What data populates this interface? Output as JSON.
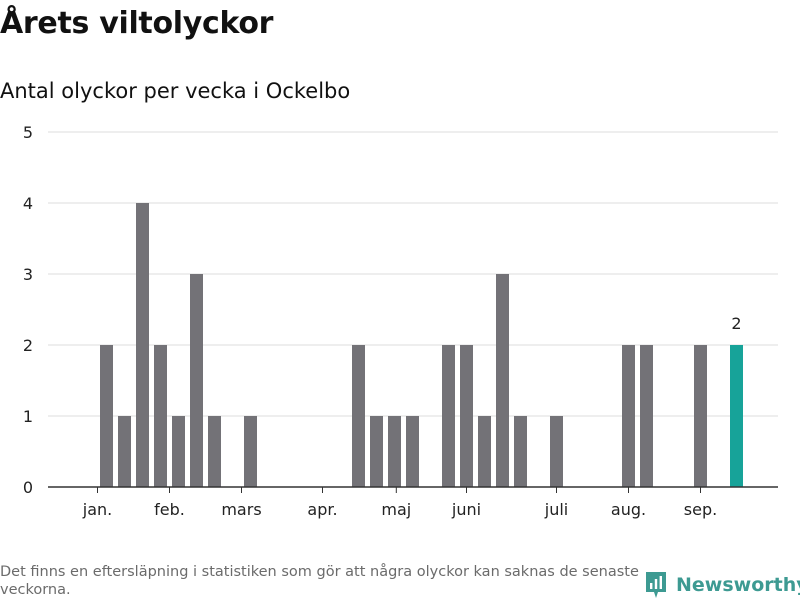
{
  "title": "Årets viltolyckor",
  "subtitle": "Antal olyckor per vecka i Ockelbo",
  "footnote": "Det finns en eftersläpning i statistiken som gör att några olyckor kan saknas de senaste veckorna.",
  "brand": {
    "name": "Newsworthy",
    "icon": "newsworthy-logo-icon",
    "color": "#3d9a92"
  },
  "colors": {
    "bar": "#737277",
    "highlight": "#17a399",
    "grid": "#dddddd",
    "axis": "#333333"
  },
  "chart_data": {
    "type": "bar",
    "xlabel": "",
    "ylabel": "",
    "ylim": [
      0,
      5
    ],
    "yticks": [
      0,
      1,
      2,
      3,
      4,
      5
    ],
    "grid": true,
    "x_start_week": 1,
    "values": [
      0,
      2,
      1,
      4,
      2,
      1,
      3,
      1,
      0,
      1,
      0,
      0,
      0,
      0,
      0,
      2,
      1,
      1,
      1,
      0,
      2,
      2,
      1,
      3,
      1,
      0,
      1,
      0,
      0,
      0,
      2,
      2,
      0,
      0,
      2,
      0,
      2
    ],
    "highlight_index": 36,
    "highlight_label": "2",
    "month_labels": [
      {
        "label": "jan.",
        "week": 1.5
      },
      {
        "label": "feb.",
        "week": 5.5
      },
      {
        "label": "mars",
        "week": 9.5
      },
      {
        "label": "apr.",
        "week": 14
      },
      {
        "label": "maj",
        "week": 18.1
      },
      {
        "label": "juni",
        "week": 22
      },
      {
        "label": "juli",
        "week": 27
      },
      {
        "label": "aug.",
        "week": 31
      },
      {
        "label": "sep.",
        "week": 35
      }
    ]
  }
}
